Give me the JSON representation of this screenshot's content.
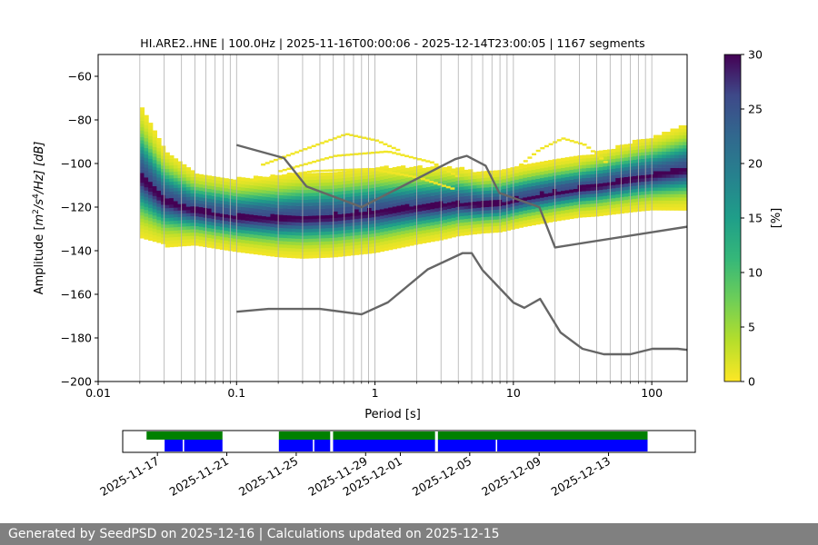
{
  "chart_data": [
    {
      "type": "heatmap",
      "title": "HI.ARE2..HNE | 100.0Hz | 2025-11-16T00:00:06 - 2025-12-14T23:00:05 | 1167 segments",
      "xlabel": "Period [s]",
      "ylabel_parts": [
        "Amplitude [",
        "m",
        "2",
        "/s",
        "4",
        "/Hz] [dB]"
      ],
      "xscale": "log",
      "xlim": [
        0.01,
        180
      ],
      "ylim": [
        -200,
        -50
      ],
      "x_ticks": [
        0.01,
        0.1,
        1,
        10,
        100
      ],
      "x_tick_labels": [
        "0.01",
        "0.1",
        "1",
        "10",
        "100"
      ],
      "y_ticks": [
        -200,
        -180,
        -160,
        -140,
        -120,
        -100,
        -80,
        -60
      ],
      "y_tick_labels": [
        "−200",
        "−180",
        "−160",
        "−140",
        "−120",
        "−100",
        "−80",
        "−60"
      ],
      "grid": true,
      "colormap": "viridis_r",
      "colorbar": {
        "label": "[%]",
        "range": [
          0,
          30
        ],
        "ticks": [
          0,
          5,
          10,
          15,
          20,
          25,
          30
        ],
        "tick_labels": [
          "0",
          "5",
          "10",
          "15",
          "20",
          "25",
          "30"
        ]
      },
      "psd_mode_db": [
        [
          0.02,
          -104
        ],
        [
          0.03,
          -116
        ],
        [
          0.05,
          -121
        ],
        [
          0.1,
          -124
        ],
        [
          0.2,
          -124.5
        ],
        [
          0.5,
          -123.5
        ],
        [
          1,
          -121.5
        ],
        [
          2,
          -119.5
        ],
        [
          4,
          -118
        ],
        [
          6,
          -118.5
        ],
        [
          8,
          -118
        ],
        [
          12,
          -115.5
        ],
        [
          20,
          -113
        ],
        [
          40,
          -110
        ],
        [
          80,
          -106
        ],
        [
          180,
          -102
        ]
      ],
      "psd_spread_db": [
        [
          0.02,
          11
        ],
        [
          0.03,
          8
        ],
        [
          0.05,
          6
        ],
        [
          0.1,
          6
        ],
        [
          0.3,
          7
        ],
        [
          1,
          7
        ],
        [
          3,
          6
        ],
        [
          6,
          5
        ],
        [
          10,
          5
        ],
        [
          30,
          5
        ],
        [
          100,
          6
        ],
        [
          180,
          7
        ]
      ],
      "outlier_arcs": [
        {
          "x": [
            0.15,
            0.3,
            0.6,
            1.0,
            1.5
          ],
          "y": [
            -101,
            -94,
            -87,
            -90,
            -95
          ]
        },
        {
          "x": [
            0.2,
            0.5,
            1.2,
            2.5,
            4.0
          ],
          "y": [
            -104,
            -97,
            -95,
            -100,
            -107
          ]
        },
        {
          "x": [
            0.13,
            0.35,
            0.9,
            2.0,
            3.5
          ],
          "y": [
            -108,
            -104,
            -103,
            -107,
            -112
          ]
        },
        {
          "x": [
            11,
            15,
            22,
            32,
            45
          ],
          "y": [
            -101,
            -94,
            -89,
            -92,
            -100
          ]
        }
      ],
      "series": [
        {
          "role": "high-noise-model",
          "color": "#666666",
          "x": [
            0.1,
            0.22,
            0.32,
            0.8,
            3.8,
            4.6,
            6.3,
            7.9,
            15.4,
            20,
            180
          ],
          "y": [
            -91.5,
            -97.5,
            -110.5,
            -120,
            -98,
            -96.5,
            -101,
            -113.5,
            -120,
            -138.5,
            -129
          ]
        },
        {
          "role": "low-noise-model",
          "color": "#666666",
          "x": [
            0.1,
            0.17,
            0.4,
            0.8,
            1.24,
            2.4,
            4.3,
            5.0,
            6.0,
            10,
            12,
            15.6,
            21.9,
            31.6,
            45,
            70,
            101,
            154,
            180
          ],
          "y": [
            -168,
            -166.7,
            -166.7,
            -169.2,
            -163.7,
            -148.6,
            -141.1,
            -141.1,
            -149,
            -163.8,
            -166.2,
            -162.1,
            -177.5,
            -185,
            -187.5,
            -187.5,
            -185,
            -185,
            -185.5
          ]
        }
      ]
    },
    {
      "type": "timeline",
      "x_tick_labels": [
        "2025-11-17",
        "2025-11-21",
        "2025-11-25",
        "2025-11-29",
        "2025-12-01",
        "2025-12-05",
        "2025-12-09",
        "2025-12-13"
      ],
      "x_ticks": [
        "2025-11-17",
        "2025-11-21",
        "2025-11-25",
        "2025-11-29",
        "2025-12-01",
        "2025-12-05",
        "2025-12-09",
        "2025-12-13"
      ],
      "xlim": [
        "2025-11-15T00:00",
        "2025-12-18T00:00"
      ],
      "data_available": {
        "color": "#008000",
        "spans": [
          [
            "2025-11-16T09:00",
            "2025-11-20T18:00"
          ],
          [
            "2025-11-24T00:00",
            "2025-11-26T23:00"
          ],
          [
            "2025-11-27T03:00",
            "2025-12-03T00:00"
          ],
          [
            "2025-12-03T04:00",
            "2025-12-15T06:00"
          ]
        ]
      },
      "psd_used": {
        "color": "#0000ff",
        "spans": [
          [
            "2025-11-17T10:00",
            "2025-11-18T11:00"
          ],
          [
            "2025-11-18T13:00",
            "2025-11-20T18:00"
          ],
          [
            "2025-11-24T00:00",
            "2025-11-25T23:00"
          ],
          [
            "2025-11-26T01:00",
            "2025-11-26T23:00"
          ],
          [
            "2025-11-27T03:00",
            "2025-12-03T00:00"
          ],
          [
            "2025-12-03T04:00",
            "2025-12-06T12:00"
          ],
          [
            "2025-12-06T14:00",
            "2025-12-15T06:00"
          ]
        ]
      }
    }
  ],
  "footer": {
    "text": "Generated by SeedPSD on 2025-12-16 | Calculations updated on 2025-12-15"
  }
}
